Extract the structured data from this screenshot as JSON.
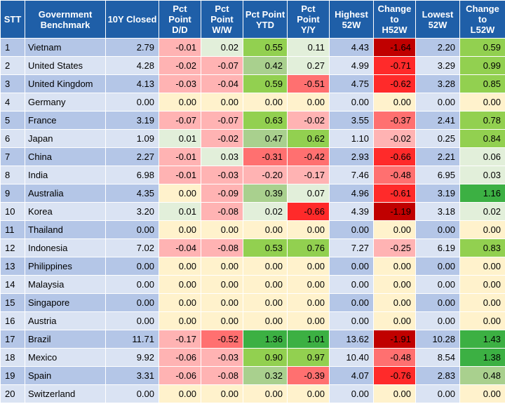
{
  "columns": [
    {
      "lines": [
        "STT"
      ]
    },
    {
      "lines": [
        "Government",
        "Benchmark"
      ]
    },
    {
      "lines": [
        "10Y Closed"
      ]
    },
    {
      "lines": [
        "Pct",
        "Point",
        "D/D"
      ]
    },
    {
      "lines": [
        "Pct",
        "Point",
        "W/W"
      ]
    },
    {
      "lines": [
        "Pct Point",
        "YTD"
      ]
    },
    {
      "lines": [
        "Pct",
        "Point",
        "Y/Y"
      ]
    },
    {
      "lines": [
        "Highest",
        "52W"
      ]
    },
    {
      "lines": [
        "Change",
        "to",
        "H52W"
      ]
    },
    {
      "lines": [
        "Lowest",
        "52W"
      ]
    },
    {
      "lines": [
        "Change",
        "to",
        "L52W"
      ]
    }
  ],
  "rows": [
    {
      "stt": "1",
      "country": "Vietnam",
      "closed": "2.79",
      "dd": "-0.01",
      "ww": "0.02",
      "ytd": "0.55",
      "yy": "0.11",
      "high": "4.43",
      "ch": "-1.64",
      "low": "2.20",
      "cl": "0.59"
    },
    {
      "stt": "2",
      "country": "United States",
      "closed": "4.28",
      "dd": "-0.02",
      "ww": "-0.07",
      "ytd": "0.42",
      "yy": "0.27",
      "high": "4.99",
      "ch": "-0.71",
      "low": "3.29",
      "cl": "0.99"
    },
    {
      "stt": "3",
      "country": "United Kingdom",
      "closed": "4.13",
      "dd": "-0.03",
      "ww": "-0.04",
      "ytd": "0.59",
      "yy": "-0.51",
      "high": "4.75",
      "ch": "-0.62",
      "low": "3.28",
      "cl": "0.85"
    },
    {
      "stt": "4",
      "country": "Germany",
      "closed": "0.00",
      "dd": "0.00",
      "ww": "0.00",
      "ytd": "0.00",
      "yy": "0.00",
      "high": "0.00",
      "ch": "0.00",
      "low": "0.00",
      "cl": "0.00"
    },
    {
      "stt": "5",
      "country": "France",
      "closed": "3.19",
      "dd": "-0.07",
      "ww": "-0.07",
      "ytd": "0.63",
      "yy": "-0.02",
      "high": "3.55",
      "ch": "-0.37",
      "low": "2.41",
      "cl": "0.78"
    },
    {
      "stt": "6",
      "country": "Japan",
      "closed": "1.09",
      "dd": "0.01",
      "ww": "-0.02",
      "ytd": "0.47",
      "yy": "0.62",
      "high": "1.10",
      "ch": "-0.02",
      "low": "0.25",
      "cl": "0.84"
    },
    {
      "stt": "7",
      "country": "China",
      "closed": "2.27",
      "dd": "-0.01",
      "ww": "0.03",
      "ytd": "-0.31",
      "yy": "-0.42",
      "high": "2.93",
      "ch": "-0.66",
      "low": "2.21",
      "cl": "0.06"
    },
    {
      "stt": "8",
      "country": "India",
      "closed": "6.98",
      "dd": "-0.01",
      "ww": "-0.03",
      "ytd": "-0.20",
      "yy": "-0.17",
      "high": "7.46",
      "ch": "-0.48",
      "low": "6.95",
      "cl": "0.03"
    },
    {
      "stt": "9",
      "country": "Australia",
      "closed": "4.35",
      "dd": "0.00",
      "ww": "-0.09",
      "ytd": "0.39",
      "yy": "0.07",
      "high": "4.96",
      "ch": "-0.61",
      "low": "3.19",
      "cl": "1.16"
    },
    {
      "stt": "10",
      "country": "Korea",
      "closed": "3.20",
      "dd": "0.01",
      "ww": "-0.08",
      "ytd": "0.02",
      "yy": "-0.66",
      "high": "4.39",
      "ch": "-1.19",
      "low": "3.18",
      "cl": "0.02"
    },
    {
      "stt": "11",
      "country": "Thailand",
      "closed": "0.00",
      "dd": "0.00",
      "ww": "0.00",
      "ytd": "0.00",
      "yy": "0.00",
      "high": "0.00",
      "ch": "0.00",
      "low": "0.00",
      "cl": "0.00"
    },
    {
      "stt": "12",
      "country": "Indonesia",
      "closed": "7.02",
      "dd": "-0.04",
      "ww": "-0.08",
      "ytd": "0.53",
      "yy": "0.76",
      "high": "7.27",
      "ch": "-0.25",
      "low": "6.19",
      "cl": "0.83"
    },
    {
      "stt": "13",
      "country": "Philippines",
      "closed": "0.00",
      "dd": "0.00",
      "ww": "0.00",
      "ytd": "0.00",
      "yy": "0.00",
      "high": "0.00",
      "ch": "0.00",
      "low": "0.00",
      "cl": "0.00"
    },
    {
      "stt": "14",
      "country": "Malaysia",
      "closed": "0.00",
      "dd": "0.00",
      "ww": "0.00",
      "ytd": "0.00",
      "yy": "0.00",
      "high": "0.00",
      "ch": "0.00",
      "low": "0.00",
      "cl": "0.00"
    },
    {
      "stt": "15",
      "country": "Singapore",
      "closed": "0.00",
      "dd": "0.00",
      "ww": "0.00",
      "ytd": "0.00",
      "yy": "0.00",
      "high": "0.00",
      "ch": "0.00",
      "low": "0.00",
      "cl": "0.00"
    },
    {
      "stt": "16",
      "country": "Austria",
      "closed": "0.00",
      "dd": "0.00",
      "ww": "0.00",
      "ytd": "0.00",
      "yy": "0.00",
      "high": "0.00",
      "ch": "0.00",
      "low": "0.00",
      "cl": "0.00"
    },
    {
      "stt": "17",
      "country": "Brazil",
      "closed": "11.71",
      "dd": "-0.17",
      "ww": "-0.52",
      "ytd": "1.36",
      "yy": "1.01",
      "high": "13.62",
      "ch": "-1.91",
      "low": "10.28",
      "cl": "1.43"
    },
    {
      "stt": "18",
      "country": "Mexico",
      "closed": "9.92",
      "dd": "-0.06",
      "ww": "-0.03",
      "ytd": "0.90",
      "yy": "0.97",
      "high": "10.40",
      "ch": "-0.48",
      "low": "8.54",
      "cl": "1.38"
    },
    {
      "stt": "19",
      "country": "Spain",
      "closed": "3.31",
      "dd": "-0.06",
      "ww": "-0.08",
      "ytd": "0.32",
      "yy": "-0.39",
      "high": "4.07",
      "ch": "-0.76",
      "low": "2.83",
      "cl": "0.48"
    },
    {
      "stt": "20",
      "country": "Switzerland",
      "closed": "0.00",
      "dd": "0.00",
      "ww": "0.00",
      "ytd": "0.00",
      "yy": "0.00",
      "high": "0.00",
      "ch": "0.00",
      "low": "0.00",
      "cl": "0.00"
    }
  ],
  "colors": {
    "header_bg": "#1f5fa8",
    "row_odd": "#b4c6e7",
    "row_even": "#dae3f3",
    "zero": "#fff2cc",
    "neg_light": "#ffb3b3",
    "neg_mid": "#ff7070",
    "neg_strong": "#ff2a2a",
    "neg_dark": "#c00000",
    "pos_light": "#e2efda",
    "pos_mid": "#a9d08e",
    "pos_strong": "#92d050",
    "pos_dark": "#3cb043"
  }
}
